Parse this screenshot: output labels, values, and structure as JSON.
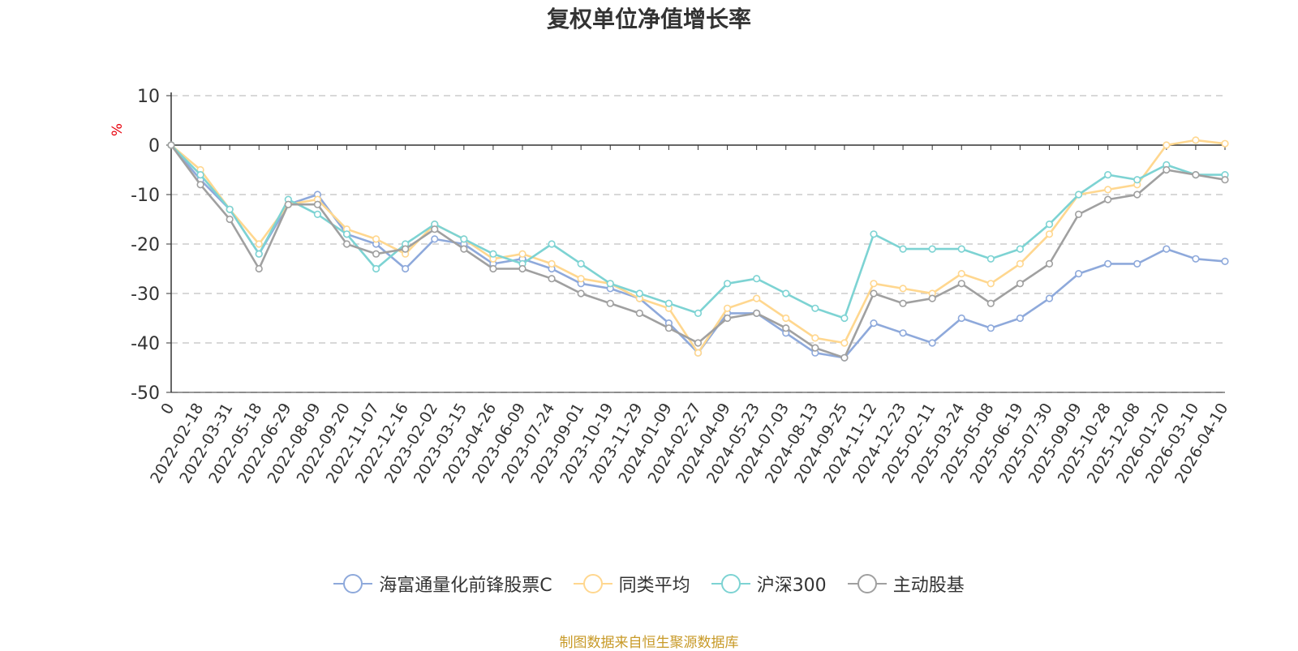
{
  "chart_data": {
    "type": "line",
    "title": "复权单位净值增长率",
    "ylabel": "%",
    "xlabel": "",
    "ylim": [
      -50,
      10
    ],
    "yticks": [
      10,
      0,
      -10,
      -20,
      -30,
      -40,
      -50
    ],
    "grid": true,
    "legend_position": "bottom",
    "categories": [
      "0",
      "2022-02-18",
      "2022-03-31",
      "2022-05-18",
      "2022-06-29",
      "2022-08-09",
      "2022-09-20",
      "2022-11-07",
      "2022-12-16",
      "2023-02-02",
      "2023-03-15",
      "2023-04-26",
      "2023-06-09",
      "2023-07-24",
      "2023-09-01",
      "2023-10-19",
      "2023-11-29",
      "2024-01-09",
      "2024-02-27",
      "2024-04-09",
      "2024-05-23",
      "2024-07-03",
      "2024-08-13",
      "2024-09-25",
      "2024-11-12",
      "2024-12-23",
      "2025-02-11",
      "2025-03-24",
      "2025-05-08",
      "2025-06-19",
      "2025-07-30",
      "2025-09-09",
      "2025-10-28",
      "2025-12-08",
      "2026-01-20",
      "2026-03-10",
      "2026-04-10"
    ],
    "series": [
      {
        "name": "海富通量化前锋股票C",
        "color": "#8ea9db",
        "values": [
          0,
          -7,
          -13,
          -22,
          -12,
          -10,
          -18,
          -20,
          -25,
          -19,
          -20,
          -24,
          -23,
          -25,
          -28,
          -29,
          -31,
          -36,
          -42,
          -34,
          -34,
          -38,
          -42,
          -43,
          -36,
          -38,
          -40,
          -35,
          -37,
          -35,
          -31,
          -26,
          -24,
          -24,
          -21,
          -23,
          -23.5
        ]
      },
      {
        "name": "同类平均",
        "color": "#ffd78f",
        "values": [
          0,
          -5,
          -13,
          -20,
          -12,
          -11,
          -17,
          -19,
          -22,
          -16,
          -19,
          -23,
          -22,
          -24,
          -27,
          -28,
          -31,
          -33,
          -42,
          -33,
          -31,
          -35,
          -39,
          -40,
          -28,
          -29,
          -30,
          -26,
          -28,
          -24,
          -18,
          -10,
          -9,
          -8,
          0,
          1,
          0.3
        ]
      },
      {
        "name": "沪深300",
        "color": "#7dd3d3",
        "values": [
          0,
          -6,
          -13,
          -22,
          -11,
          -14,
          -18,
          -25,
          -20,
          -16,
          -19,
          -22,
          -24,
          -20,
          -24,
          -28,
          -30,
          -32,
          -34,
          -28,
          -27,
          -30,
          -33,
          -35,
          -18,
          -21,
          -21,
          -21,
          -23,
          -21,
          -16,
          -10,
          -6,
          -7,
          -4,
          -6,
          -6
        ]
      },
      {
        "name": "主动股基",
        "color": "#a0a0a0",
        "values": [
          0,
          -8,
          -15,
          -25,
          -12,
          -12,
          -20,
          -22,
          -21,
          -17,
          -21,
          -25,
          -25,
          -27,
          -30,
          -32,
          -34,
          -37,
          -40,
          -35,
          -34,
          -37,
          -41,
          -43,
          -30,
          -32,
          -31,
          -28,
          -32,
          -28,
          -24,
          -14,
          -11,
          -10,
          -5,
          -6,
          -7
        ]
      }
    ]
  },
  "source_note": "制图数据来自恒生聚源数据库"
}
